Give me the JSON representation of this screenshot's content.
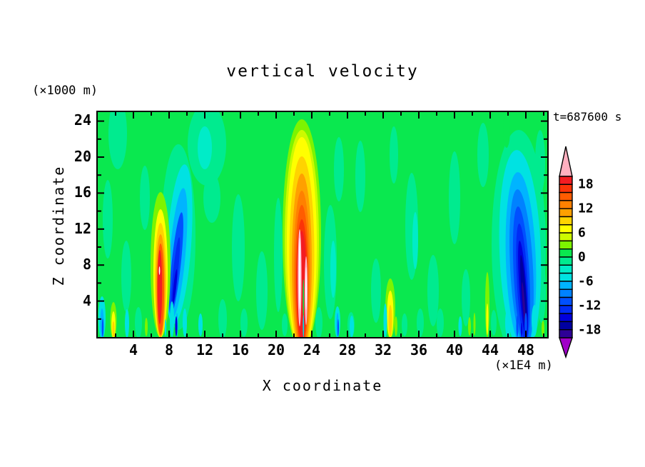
{
  "title": "vertical velocity",
  "time_label": "t=687600 s",
  "y_axis": {
    "unit": "(×1000 m)",
    "label": "Z coordinate",
    "ticks": [
      "24",
      "20",
      "16",
      "12",
      "8",
      "4"
    ]
  },
  "x_axis": {
    "label": "X coordinate",
    "unit": "(×1E4 m)",
    "ticks": [
      "4",
      "8",
      "12",
      "16",
      "20",
      "24",
      "28",
      "32",
      "36",
      "40",
      "44",
      "48"
    ]
  },
  "colorbar": {
    "labels": [
      "18",
      "12",
      "6",
      "0",
      "-6",
      "-12",
      "-18"
    ],
    "colors": [
      "#f31c22",
      "#fb3408",
      "#ff5c00",
      "#ff8000",
      "#ffa000",
      "#ffd300",
      "#ffff00",
      "#ccfa00",
      "#7df400",
      "#0ae84f",
      "#00eb8f",
      "#00ecc8",
      "#00e2e2",
      "#00b4ff",
      "#0082ff",
      "#0050ff",
      "#002cf5",
      "#0000dc",
      "#0000a0",
      "#2d0096"
    ],
    "above_range_color": "#ffb0c0",
    "below_range_color": "#a000c8",
    "core_pink": "#ffb9c8",
    "core_white": "#ffffff"
  },
  "chart_data": {
    "type": "heatmap",
    "subtype": "filled-contour-cross-section",
    "title": "vertical velocity",
    "time": "t=687600 s",
    "xlabel": "X coordinate",
    "x_unit": "(×1E4 m)",
    "ylabel": "Z coordinate",
    "y_unit": "(×1000 m)",
    "x_range": [
      0,
      50.4
    ],
    "y_range": [
      0,
      25
    ],
    "x_major_ticks": [
      4,
      8,
      12,
      16,
      20,
      24,
      28,
      32,
      36,
      40,
      44,
      48
    ],
    "y_major_ticks": [
      4,
      8,
      12,
      16,
      20,
      24
    ],
    "contour_interval": 2,
    "contour_levels_labeled": [
      18,
      12,
      6,
      0,
      -6,
      -12,
      -18
    ],
    "value_range_of_colorbar": [
      -20,
      20
    ],
    "background_value_range": [
      -2,
      2
    ],
    "features": [
      {
        "name": "updraft",
        "x_center": 7.1,
        "z_extent": [
          0,
          14.5
        ],
        "peak_value": 18
      },
      {
        "name": "downdraft",
        "x_center": 8.8,
        "z_extent": [
          0,
          16
        ],
        "peak_value": -14
      },
      {
        "name": "main-updraft",
        "x_center": 22.5,
        "z_extent": [
          0,
          21
        ],
        "peak_value": 20
      },
      {
        "name": "weak-updraft",
        "x_center": 32.8,
        "z_extent": [
          0,
          7
        ],
        "peak_value": 10
      },
      {
        "name": "main-downdraft",
        "x_center": 45.8,
        "z_extent": [
          0,
          21
        ],
        "peak_value": -18
      },
      {
        "name": "weak-updraft-near-surface",
        "x_center": 1.8,
        "z_extent": [
          0,
          4
        ],
        "peak_value": 10
      },
      {
        "name": "weak-updraft-near-surface",
        "x_center": 41.9,
        "z_extent": [
          0,
          8
        ],
        "peak_value": 6
      }
    ],
    "legend_position": "right-vertical-colorbar-with-end-arrows"
  }
}
